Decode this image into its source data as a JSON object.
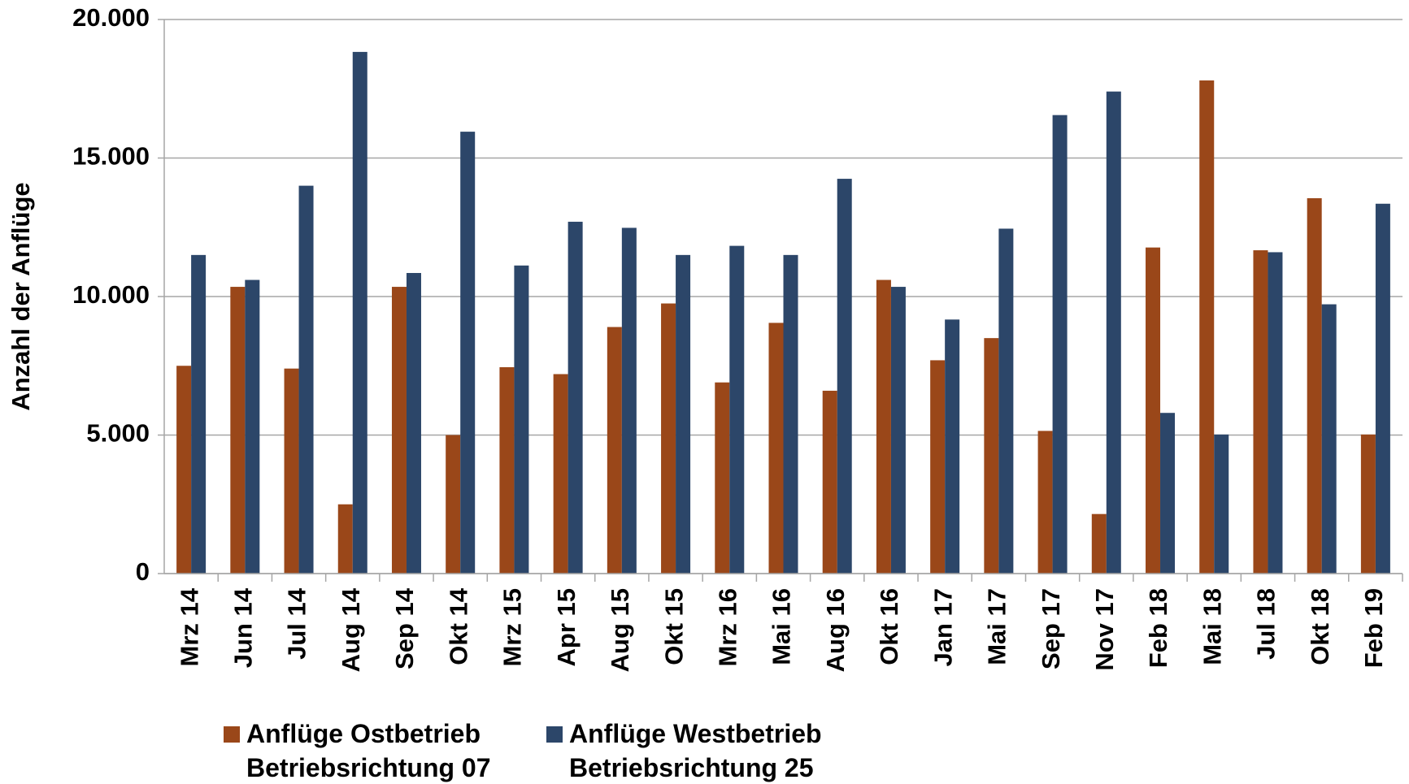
{
  "chart_data": {
    "type": "bar",
    "y_label": "Anzahl der Anflüge",
    "categories": [
      "Mrz 14",
      "Jun 14",
      "Jul 14",
      "Aug 14",
      "Sep 14",
      "Okt 14",
      "Mrz 15",
      "Apr 15",
      "Aug 15",
      "Okt 15",
      "Mrz 16",
      "Mai 16",
      "Aug 16",
      "Okt 16",
      "Jan 17",
      "Mai 17",
      "Sep 17",
      "Nov 17",
      "Feb 18",
      "Mai 18",
      "Jul 18",
      "Okt 18",
      "Feb 19"
    ],
    "series": [
      {
        "name": "Anflüge Ostbetrieb Betriebsrichtung 07",
        "color": "#9a4719",
        "values": [
          7500,
          10350,
          7400,
          2500,
          10350,
          5000,
          7450,
          7200,
          8900,
          9750,
          6900,
          9050,
          6600,
          10600,
          7700,
          8500,
          5150,
          2150,
          11770,
          17800,
          11670,
          13550,
          5020
        ]
      },
      {
        "name": "Anflüge Westbetrieb Betriebsrichtung 25",
        "color": "#2c4669",
        "values": [
          11500,
          10600,
          14000,
          18830,
          10850,
          15950,
          11120,
          12700,
          12480,
          11500,
          11830,
          11500,
          14250,
          10350,
          9170,
          12450,
          16550,
          17400,
          5800,
          5020,
          11600,
          9720,
          13350
        ]
      }
    ],
    "ylim": [
      0,
      20000
    ],
    "yticks": [
      0,
      {
        "value": 5000,
        "label": "5.000"
      },
      {
        "value": 10000,
        "label": "10.000"
      },
      {
        "value": 15000,
        "label": "15.000"
      },
      {
        "value": 20000,
        "label": "20.000"
      }
    ],
    "grid": true,
    "legend": "bottom"
  }
}
